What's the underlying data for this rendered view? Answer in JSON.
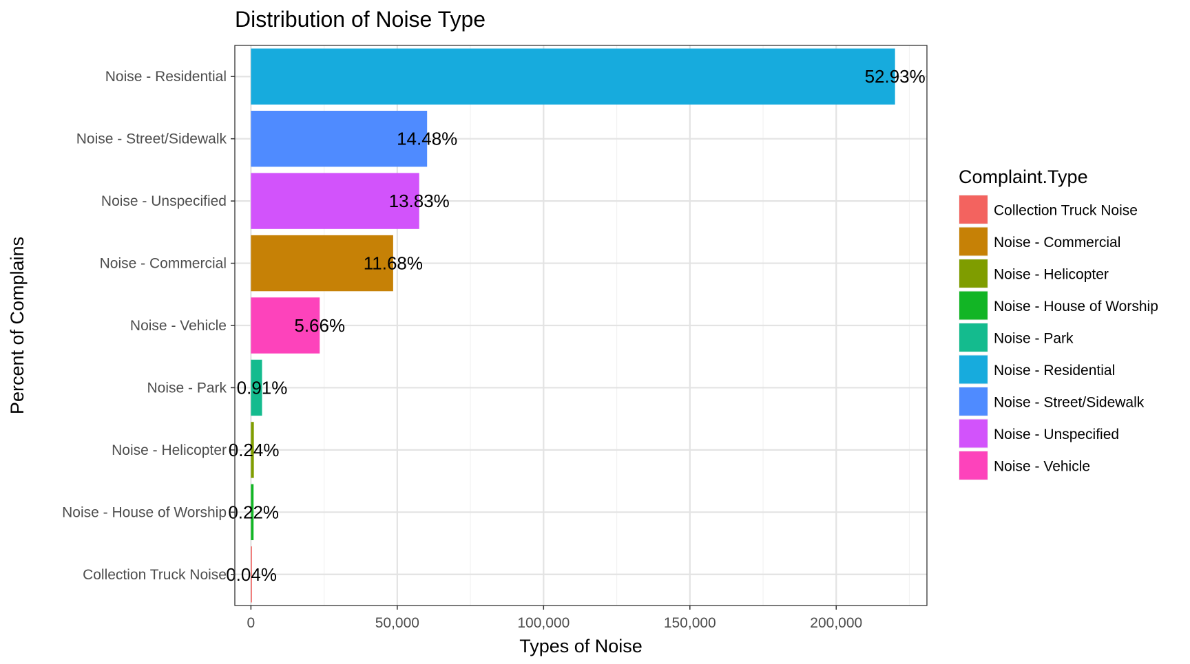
{
  "chart_data": {
    "type": "bar",
    "orientation": "horizontal",
    "title": "Distribution of Noise Type",
    "xlabel": "Types of Noise",
    "ylabel": "Percent of Complains",
    "xlim": [
      -5500,
      231000
    ],
    "x_ticks": [
      0,
      50000,
      100000,
      150000,
      200000
    ],
    "x_tick_labels": [
      "0",
      "50,000",
      "100,000",
      "150,000",
      "200,000"
    ],
    "grid": true,
    "categories": [
      "Noise - Residential",
      "Noise - Street/Sidewalk",
      "Noise - Unspecified",
      "Noise - Commercial",
      "Noise - Vehicle",
      "Noise - Park",
      "Noise - Helicopter",
      "Noise - House of Worship",
      "Collection Truck Noise"
    ],
    "values": [
      220100,
      60200,
      57500,
      48600,
      23500,
      3800,
      1000,
      900,
      170
    ],
    "labels": [
      "52.93%",
      "14.48%",
      "13.83%",
      "11.68%",
      "5.66%",
      "0.91%",
      "0.24%",
      "0.22%",
      "0.04%"
    ],
    "colors": [
      "#17ABDD",
      "#4F8BFF",
      "#D253FB",
      "#C68106",
      "#FD43BB",
      "#14BB8E",
      "#7F9D00",
      "#12B525",
      "#F3635F"
    ],
    "legend": {
      "title": "Complaint.Type",
      "position": "right",
      "items": [
        {
          "label": "Collection Truck Noise",
          "color": "#F3635F"
        },
        {
          "label": "Noise - Commercial",
          "color": "#C68106"
        },
        {
          "label": "Noise - Helicopter",
          "color": "#7F9D00"
        },
        {
          "label": "Noise - House of Worship",
          "color": "#12B525"
        },
        {
          "label": "Noise - Park",
          "color": "#14BB8E"
        },
        {
          "label": "Noise - Residential",
          "color": "#17ABDD"
        },
        {
          "label": "Noise - Street/Sidewalk",
          "color": "#4F8BFF"
        },
        {
          "label": "Noise - Unspecified",
          "color": "#D253FB"
        },
        {
          "label": "Noise - Vehicle",
          "color": "#FD43BB"
        }
      ]
    }
  }
}
